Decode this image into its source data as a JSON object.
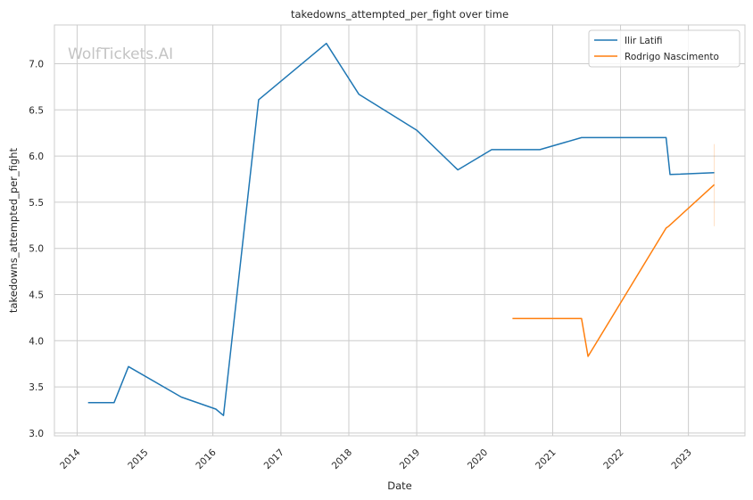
{
  "chart_data": {
    "type": "line",
    "title": "takedowns_attempted_per_fight over time",
    "xlabel": "Date",
    "ylabel": "takedowns_attempted_per_fight",
    "watermark": "WolfTickets.AI",
    "xlim": [
      "2013-09-01",
      "2023-11-01"
    ],
    "ylim": [
      2.97,
      7.42
    ],
    "x_ticks": [
      "2014",
      "2015",
      "2016",
      "2017",
      "2018",
      "2019",
      "2020",
      "2021",
      "2022",
      "2023"
    ],
    "y_ticks": [
      "3.0",
      "3.5",
      "4.0",
      "4.5",
      "5.0",
      "5.5",
      "6.0",
      "6.5",
      "7.0"
    ],
    "grid": true,
    "legend_position": "top-right",
    "series": [
      {
        "name": "Ilir Latifi",
        "color": "#1f77b4",
        "points": [
          {
            "x": "2014-03-01",
            "y": 3.33
          },
          {
            "x": "2014-07-19",
            "y": 3.33
          },
          {
            "x": "2014-10-04",
            "y": 3.72
          },
          {
            "x": "2015-07-15",
            "y": 3.39
          },
          {
            "x": "2016-01-17",
            "y": 3.26
          },
          {
            "x": "2016-02-27",
            "y": 3.19
          },
          {
            "x": "2016-09-03",
            "y": 6.61
          },
          {
            "x": "2017-09-02",
            "y": 7.22
          },
          {
            "x": "2018-02-24",
            "y": 6.67
          },
          {
            "x": "2019-01-01",
            "y": 6.28
          },
          {
            "x": "2019-08-10",
            "y": 5.85
          },
          {
            "x": "2020-02-08",
            "y": 6.07
          },
          {
            "x": "2020-10-24",
            "y": 6.07
          },
          {
            "x": "2021-06-05",
            "y": 6.2
          },
          {
            "x": "2022-09-03",
            "y": 6.2
          },
          {
            "x": "2022-09-24",
            "y": 5.8
          },
          {
            "x": "2023-05-20",
            "y": 5.82
          }
        ]
      },
      {
        "name": "Rodrigo Nascimento",
        "color": "#ff7f0e",
        "points": [
          {
            "x": "2020-05-30",
            "y": 4.24
          },
          {
            "x": "2021-06-05",
            "y": 4.24
          },
          {
            "x": "2021-07-10",
            "y": 3.83
          },
          {
            "x": "2022-09-03",
            "y": 5.22
          },
          {
            "x": "2022-09-17",
            "y": 5.24
          },
          {
            "x": "2023-05-20",
            "y": 5.69
          }
        ],
        "error_band": {
          "x": "2023-05-20",
          "low": 5.24,
          "high": 6.13
        }
      }
    ]
  }
}
